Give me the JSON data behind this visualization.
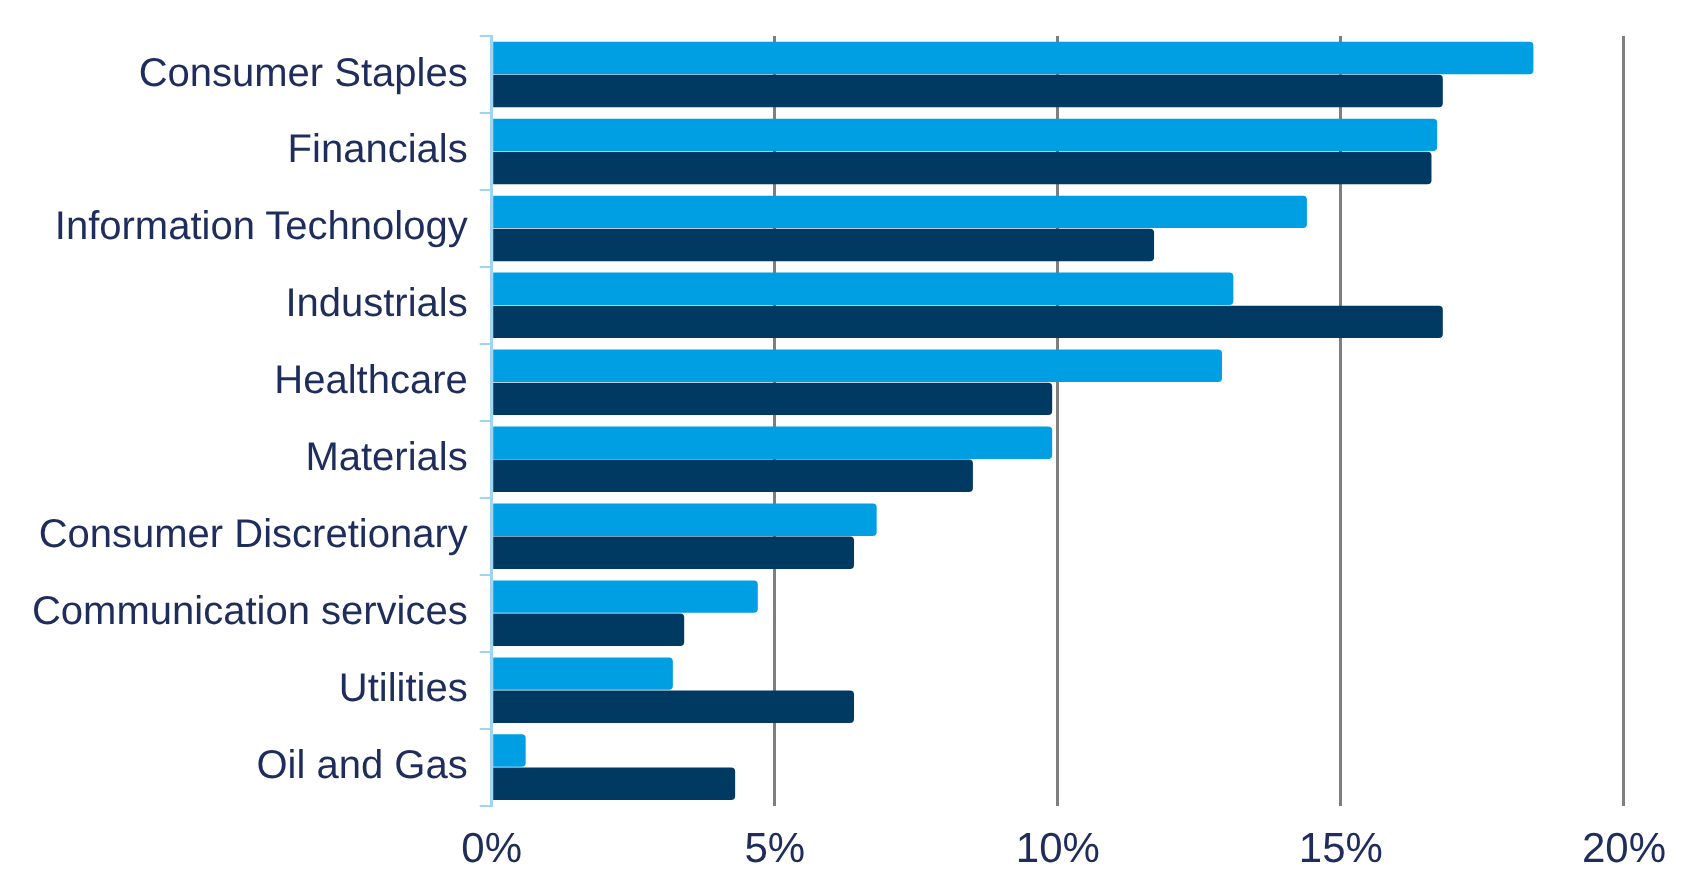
{
  "chart_data": {
    "type": "bar",
    "orientation": "horizontal",
    "categories": [
      "Consumer Staples",
      "Financials",
      "Information Technology",
      "Industrials",
      "Healthcare",
      "Materials",
      "Consumer Discretionary",
      "Communication services",
      "Utilities",
      "Oil and Gas"
    ],
    "series": [
      {
        "color": "#009fe3",
        "values": [
          18.4,
          16.7,
          14.4,
          13.1,
          12.9,
          9.9,
          6.8,
          4.7,
          3.2,
          0.6
        ]
      },
      {
        "color": "#003a63",
        "values": [
          16.8,
          16.6,
          11.7,
          16.8,
          9.9,
          8.5,
          6.4,
          3.4,
          6.4,
          4.3
        ]
      }
    ],
    "xlim": [
      0,
      20
    ],
    "xticks": [
      {
        "value": 0,
        "label": "0%"
      },
      {
        "value": 5,
        "label": "5%"
      },
      {
        "value": 10,
        "label": "10%"
      },
      {
        "value": 15,
        "label": "15%"
      },
      {
        "value": 20,
        "label": "20%"
      }
    ],
    "grid": "x",
    "legend": false
  }
}
